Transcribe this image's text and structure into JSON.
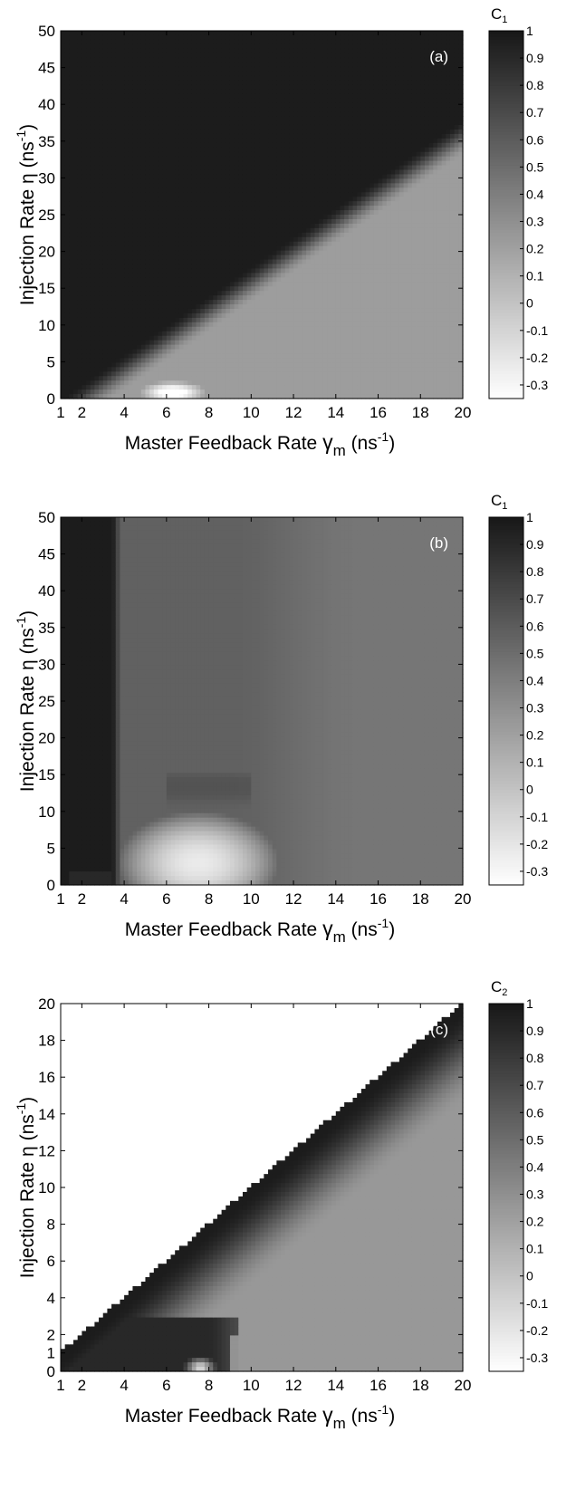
{
  "chart_data": [
    {
      "type": "heatmap",
      "panel_label": "(a)",
      "xlabel_prefix": "Master Feedback Rate",
      "xlabel_symbol": "γ",
      "xlabel_sub": "m",
      "xlabel_units": "(ns",
      "ylabel_main": "Injection Rate  η  (ns",
      "unit_exp": "-1",
      "unit_close": ")",
      "xlim": [
        1,
        20
      ],
      "ylim": [
        0,
        50
      ],
      "xticks": [
        "1",
        "2",
        "4",
        "6",
        "8",
        "10",
        "12",
        "14",
        "16",
        "18",
        "20"
      ],
      "yticks": [
        "0",
        "5",
        "10",
        "15",
        "20",
        "25",
        "30",
        "35",
        "40",
        "45",
        "50"
      ],
      "colorbar": {
        "title": "C",
        "title_sub": "1",
        "range": [
          -0.35,
          1
        ],
        "ticks": [
          "1",
          "0.9",
          "0.8",
          "0.7",
          "0.6",
          "0.5",
          "0.4",
          "0.3",
          "0.2",
          "0.1",
          "0",
          "-0.1",
          "-0.2",
          "-0.3"
        ]
      },
      "description_of_regions": {
        "boundary_line": "eta = 2 * (gamma_m - 1), below this correlation decreases",
        "above_boundary_value": 0.97,
        "below_boundary_min_value": 0.22
      }
    },
    {
      "type": "heatmap",
      "panel_label": "(b)",
      "xlabel_prefix": "Master Feedback Rate",
      "xlabel_symbol": "γ",
      "xlabel_sub": "m",
      "xlabel_units": "(ns",
      "ylabel_main": "Injection Rate  η  (ns",
      "unit_exp": "-1",
      "unit_close": ")",
      "xlim": [
        1,
        20
      ],
      "ylim": [
        0,
        50
      ],
      "xticks": [
        "1",
        "2",
        "4",
        "6",
        "8",
        "10",
        "12",
        "14",
        "16",
        "18",
        "20"
      ],
      "yticks": [
        "0",
        "5",
        "10",
        "15",
        "20",
        "25",
        "30",
        "35",
        "40",
        "45",
        "50"
      ],
      "colorbar": {
        "title": "C",
        "title_sub": "1",
        "range": [
          -0.35,
          1
        ],
        "ticks": [
          "1",
          "0.9",
          "0.8",
          "0.7",
          "0.6",
          "0.5",
          "0.4",
          "0.3",
          "0.2",
          "0.1",
          "0",
          "-0.1",
          "-0.2",
          "-0.3"
        ]
      },
      "description_of_regions": {
        "dark_region": "gamma_m < 3.5 at all eta, value ~0.97",
        "mid_region_value": 0.5,
        "light_blob_near": [
          7.5,
          3
        ],
        "light_blob_value": -0.2
      }
    },
    {
      "type": "heatmap",
      "panel_label": "(c)",
      "xlabel_prefix": "Master Feedback Rate",
      "xlabel_symbol": "γ",
      "xlabel_sub": "m",
      "xlabel_units": "(ns",
      "ylabel_main": "Injection Rate  η  (ns",
      "unit_exp": "-1",
      "unit_close": ")",
      "xlim": [
        1,
        20
      ],
      "ylim": [
        0,
        20
      ],
      "xticks": [
        "1",
        "2",
        "4",
        "6",
        "8",
        "10",
        "12",
        "14",
        "16",
        "18",
        "20"
      ],
      "yticks": [
        "0",
        "1",
        "2",
        "4",
        "6",
        "8",
        "10",
        "12",
        "14",
        "16",
        "18",
        "20"
      ],
      "colorbar": {
        "title": "C",
        "title_sub": "2",
        "range": [
          -0.35,
          1
        ],
        "ticks": [
          "1",
          "0.9",
          "0.8",
          "0.7",
          "0.6",
          "0.5",
          "0.4",
          "0.3",
          "0.2",
          "0.1",
          "0",
          "-0.1",
          "-0.2",
          "-0.3"
        ]
      },
      "description_of_regions": {
        "above_diagonal": "eta > gamma_m, value -0.35 (white)",
        "diagonal_band_value": 0.97,
        "lower_right_value": 0.25
      }
    }
  ]
}
